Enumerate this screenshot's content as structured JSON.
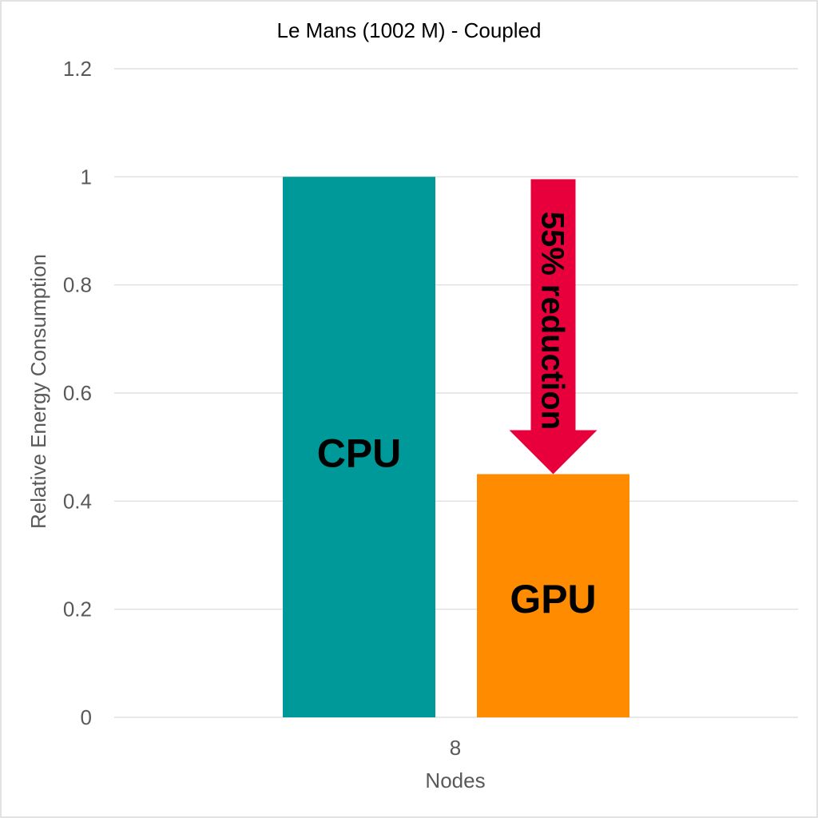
{
  "chart_data": {
    "type": "bar",
    "title": "Le Mans (1002 M) - Coupled",
    "xlabel": "Nodes",
    "ylabel": "Relative Energy Consumption",
    "categories": [
      "8"
    ],
    "ylim": [
      0,
      1.2
    ],
    "yticks": [
      "0",
      "0.2",
      "0.4",
      "0.6",
      "0.8",
      "1",
      "1.2"
    ],
    "grid": true,
    "series": [
      {
        "name": "CPU",
        "values": [
          1.0
        ],
        "color": "#009999"
      },
      {
        "name": "GPU",
        "values": [
          0.45
        ],
        "color": "#ff8c00"
      }
    ],
    "annotation": {
      "text": "55% reduction",
      "from": 1.0,
      "to": 0.45,
      "color": "#e8003d"
    }
  }
}
